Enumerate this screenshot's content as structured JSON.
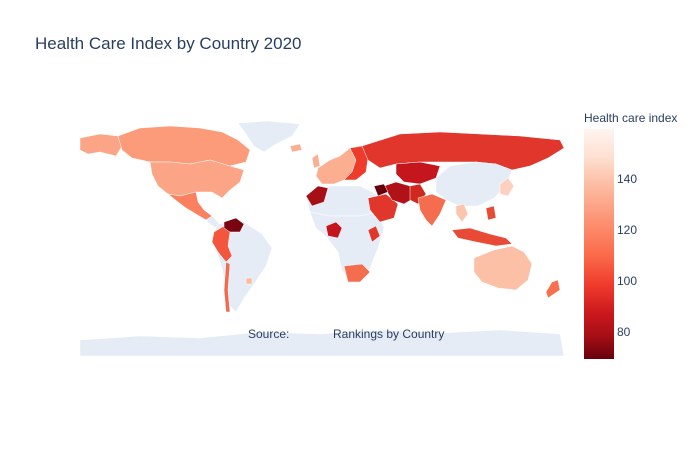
{
  "title": "Health Care Index by Country 2020",
  "annotation": {
    "source_label": "Source:",
    "link_text": "Rankings by Country"
  },
  "colorbar": {
    "title": "Health care index",
    "ticks": [
      "140",
      "120",
      "100",
      "80"
    ],
    "range": [
      68,
      160
    ],
    "colorscale": "Reds (reversed)",
    "colors": {
      "high": "#fff5f0",
      "low": "#67000d",
      "land_no_data": "#e5ecf6",
      "text": "#2a3f5f"
    }
  },
  "map": {
    "projection": "equirectangular",
    "regions_shaded": [
      {
        "region": "Canada",
        "color": "#fc9b7a"
      },
      {
        "region": "United States",
        "color": "#fca486"
      },
      {
        "region": "Mexico",
        "color": "#fb8060"
      },
      {
        "region": "Colombia / Peru",
        "color": "#f4563d"
      },
      {
        "region": "Venezuela",
        "color": "#7a0510"
      },
      {
        "region": "Chile",
        "color": "#f26a4f"
      },
      {
        "region": "Uruguay",
        "color": "#fcbba1"
      },
      {
        "region": "Western Europe",
        "color": "#fcae91"
      },
      {
        "region": "Eastern Europe",
        "color": "#ef3b2c"
      },
      {
        "region": "Russia",
        "color": "#e0362b"
      },
      {
        "region": "Kazakhstan",
        "color": "#c4161c"
      },
      {
        "region": "Morocco / Algeria",
        "color": "#a50f15"
      },
      {
        "region": "Nigeria",
        "color": "#c4161c"
      },
      {
        "region": "Kenya",
        "color": "#e0362b"
      },
      {
        "region": "South Africa",
        "color": "#f46d4e"
      },
      {
        "region": "Saudi Arabia",
        "color": "#e0362b"
      },
      {
        "region": "Iran / Iraq",
        "color": "#b01217"
      },
      {
        "region": "Syria",
        "color": "#67000d"
      },
      {
        "region": "India",
        "color": "#f46d4e"
      },
      {
        "region": "Pakistan",
        "color": "#d0281f"
      },
      {
        "region": "Thailand",
        "color": "#fcc5ae"
      },
      {
        "region": "Indonesia / Malaysia",
        "color": "#e84a35"
      },
      {
        "region": "Philippines",
        "color": "#e84a35"
      },
      {
        "region": "China",
        "color": "#e5ecf6"
      },
      {
        "region": "Japan / Korea",
        "color": "#fdd0bf"
      },
      {
        "region": "Australia",
        "color": "#fcc0a6"
      },
      {
        "region": "New Zealand",
        "color": "#f6704f"
      }
    ]
  }
}
